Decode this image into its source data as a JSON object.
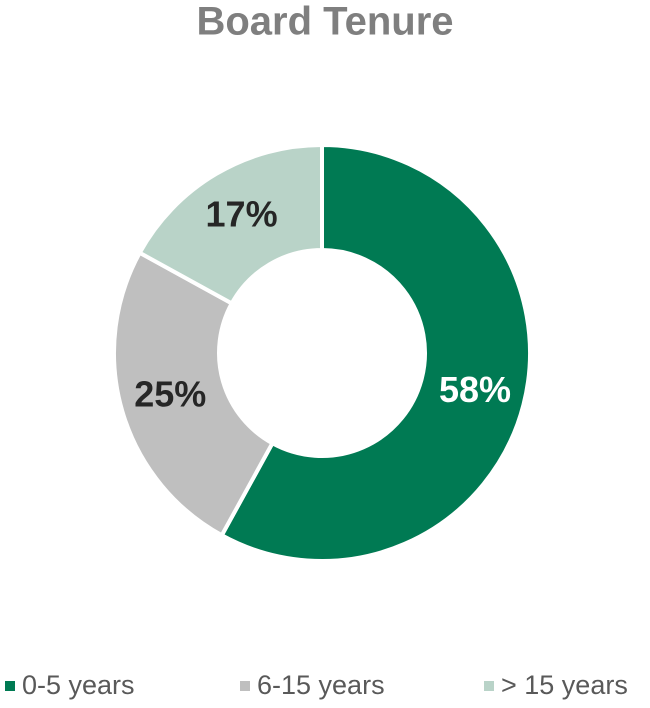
{
  "chart_data": {
    "type": "donut",
    "title": "Board Tenure",
    "categories": [
      "0-5 years",
      "6-15 years",
      "> 15 years"
    ],
    "values": [
      58,
      25,
      17
    ],
    "value_labels": [
      "58%",
      "25%",
      "17%"
    ],
    "colors": [
      "#007a53",
      "#bfbfbf",
      "#b9d3c8"
    ]
  }
}
